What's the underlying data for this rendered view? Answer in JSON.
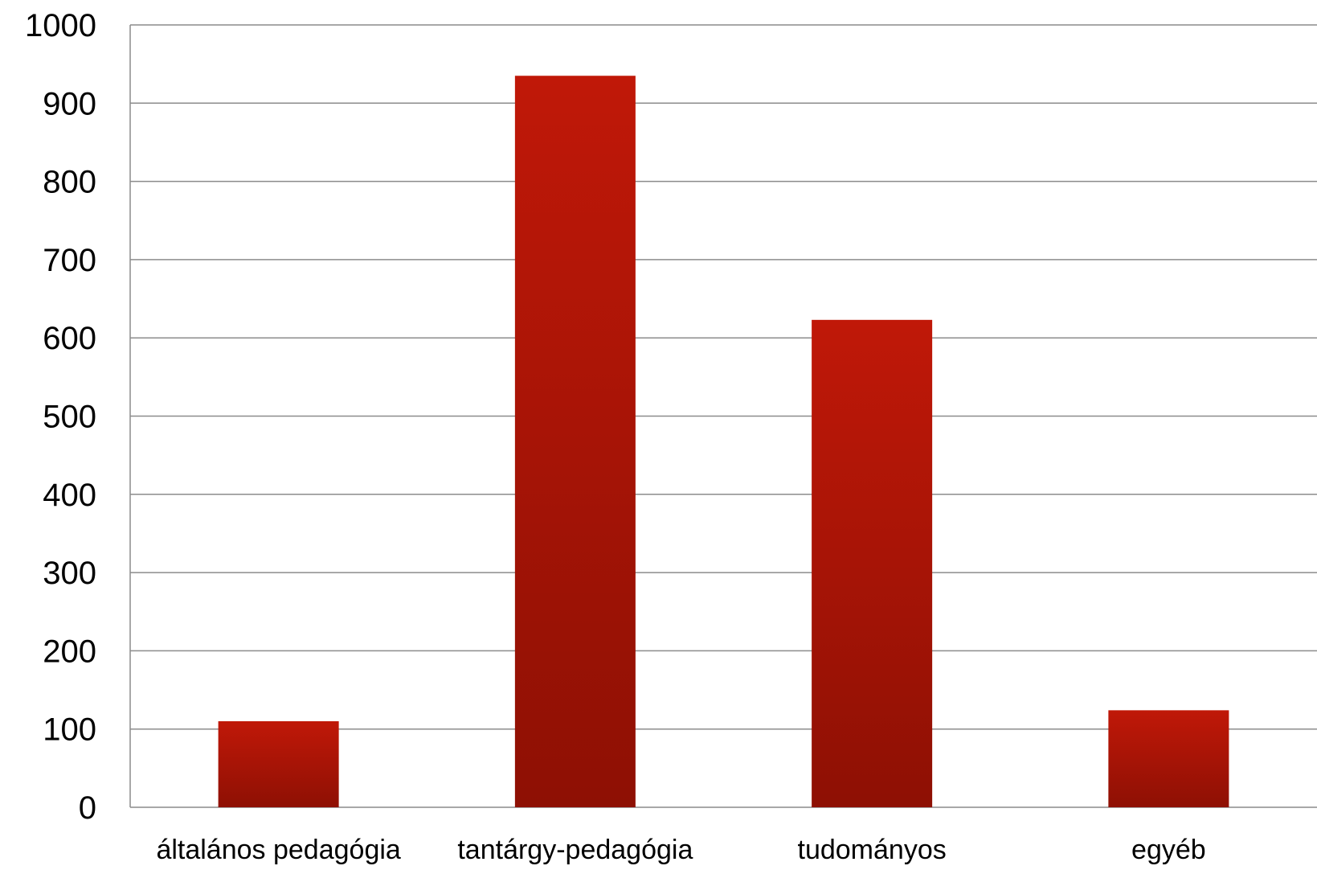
{
  "chart_data": {
    "type": "bar",
    "title": "",
    "xlabel": "",
    "ylabel": "",
    "categories": [
      "általános pedagógia",
      "tantárgy-pedagógia",
      "tudományos",
      "egyéb"
    ],
    "values": [
      110,
      935,
      623,
      124
    ],
    "ylim": [
      0,
      1000
    ],
    "yticks": [
      0,
      100,
      200,
      300,
      400,
      500,
      600,
      700,
      800,
      900,
      1000
    ],
    "grid": true,
    "legend": "none",
    "colors": {
      "bar_top": "#c01808",
      "bar_bottom": "#8e1004",
      "grid": "#8c8c8c"
    }
  }
}
